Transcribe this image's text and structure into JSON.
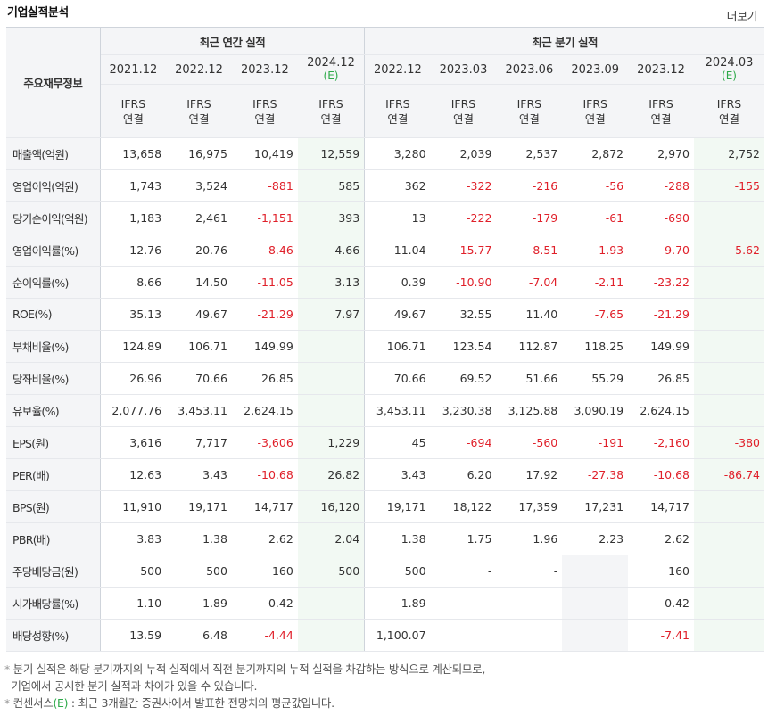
{
  "header": {
    "title": "기업실적분석",
    "more_label": "더보기"
  },
  "table": {
    "item_header": "주요재무정보",
    "annual_group": "최근 연간 실적",
    "quarter_group": "최근 분기 실적",
    "estimate_mark": "(E)",
    "ifrs_line1": "IFRS",
    "ifrs_line2": "연결",
    "annual_periods": [
      "2021.12",
      "2022.12",
      "2023.12",
      "2024.12"
    ],
    "quarter_periods": [
      "2022.12",
      "2023.03",
      "2023.06",
      "2023.09",
      "2023.12",
      "2024.03"
    ],
    "rows": [
      {
        "label": "매출액(억원)",
        "values": [
          "13,658",
          "16,975",
          "10,419",
          "12,559",
          "3,280",
          "2,039",
          "2,537",
          "2,872",
          "2,970",
          "2,752"
        ]
      },
      {
        "label": "영업이익(억원)",
        "values": [
          "1,743",
          "3,524",
          "-881",
          "585",
          "362",
          "-322",
          "-216",
          "-56",
          "-288",
          "-155"
        ]
      },
      {
        "label": "당기순이익(억원)",
        "values": [
          "1,183",
          "2,461",
          "-1,151",
          "393",
          "13",
          "-222",
          "-179",
          "-61",
          "-690",
          ""
        ]
      },
      {
        "label": "영업이익률(%)",
        "values": [
          "12.76",
          "20.76",
          "-8.46",
          "4.66",
          "11.04",
          "-15.77",
          "-8.51",
          "-1.93",
          "-9.70",
          "-5.62"
        ]
      },
      {
        "label": "순이익률(%)",
        "values": [
          "8.66",
          "14.50",
          "-11.05",
          "3.13",
          "0.39",
          "-10.90",
          "-7.04",
          "-2.11",
          "-23.22",
          ""
        ]
      },
      {
        "label": "ROE(%)",
        "values": [
          "35.13",
          "49.67",
          "-21.29",
          "7.97",
          "49.67",
          "32.55",
          "11.40",
          "-7.65",
          "-21.29",
          ""
        ]
      },
      {
        "label": "부채비율(%)",
        "values": [
          "124.89",
          "106.71",
          "149.99",
          "",
          "106.71",
          "123.54",
          "112.87",
          "118.25",
          "149.99",
          ""
        ]
      },
      {
        "label": "당좌비율(%)",
        "values": [
          "26.96",
          "70.66",
          "26.85",
          "",
          "70.66",
          "69.52",
          "51.66",
          "55.29",
          "26.85",
          ""
        ]
      },
      {
        "label": "유보율(%)",
        "values": [
          "2,077.76",
          "3,453.11",
          "2,624.15",
          "",
          "3,453.11",
          "3,230.38",
          "3,125.88",
          "3,090.19",
          "2,624.15",
          ""
        ]
      },
      {
        "label": "EPS(원)",
        "values": [
          "3,616",
          "7,717",
          "-3,606",
          "1,229",
          "45",
          "-694",
          "-560",
          "-191",
          "-2,160",
          "-380"
        ]
      },
      {
        "label": "PER(배)",
        "values": [
          "12.63",
          "3.43",
          "-10.68",
          "26.82",
          "3.43",
          "6.20",
          "17.92",
          "-27.38",
          "-10.68",
          "-86.74"
        ]
      },
      {
        "label": "BPS(원)",
        "values": [
          "11,910",
          "19,171",
          "14,717",
          "16,120",
          "19,171",
          "18,122",
          "17,359",
          "17,231",
          "14,717",
          ""
        ]
      },
      {
        "label": "PBR(배)",
        "values": [
          "3.83",
          "1.38",
          "2.62",
          "2.04",
          "1.38",
          "1.75",
          "1.96",
          "2.23",
          "2.62",
          ""
        ]
      },
      {
        "label": "주당배당금(원)",
        "values": [
          "500",
          "500",
          "160",
          "500",
          "500",
          "-",
          "-",
          "",
          "160",
          ""
        ]
      },
      {
        "label": "시가배당률(%)",
        "values": [
          "1.10",
          "1.89",
          "0.42",
          "",
          "1.89",
          "-",
          "-",
          "",
          "0.42",
          ""
        ]
      },
      {
        "label": "배당성향(%)",
        "values": [
          "13.59",
          "6.48",
          "-4.44",
          "",
          "1,100.07",
          "",
          "",
          "",
          "-7.41",
          ""
        ]
      }
    ]
  },
  "notes": {
    "bullet": "*",
    "line1": "분기 실적은 해당 분기까지의 누적 실적에서 직전 분기까지의 누적 실적을 차감하는 방식으로 계산되므로,",
    "line2": "기업에서 공시한 분기 실적과 차이가 있을 수 있습니다.",
    "line3_pre": "컨센서스",
    "line3_em": "(E)",
    "line3_post": " : 최근 3개월간 증권사에서 발표한 전망치의 평균값입니다."
  },
  "colors": {
    "negative": "#e0202a",
    "ifrs": "#f07800",
    "estimate": "#2eaa4a",
    "estimate_bg": "#f2f9f3",
    "header_bg": "#f4f5f7"
  }
}
